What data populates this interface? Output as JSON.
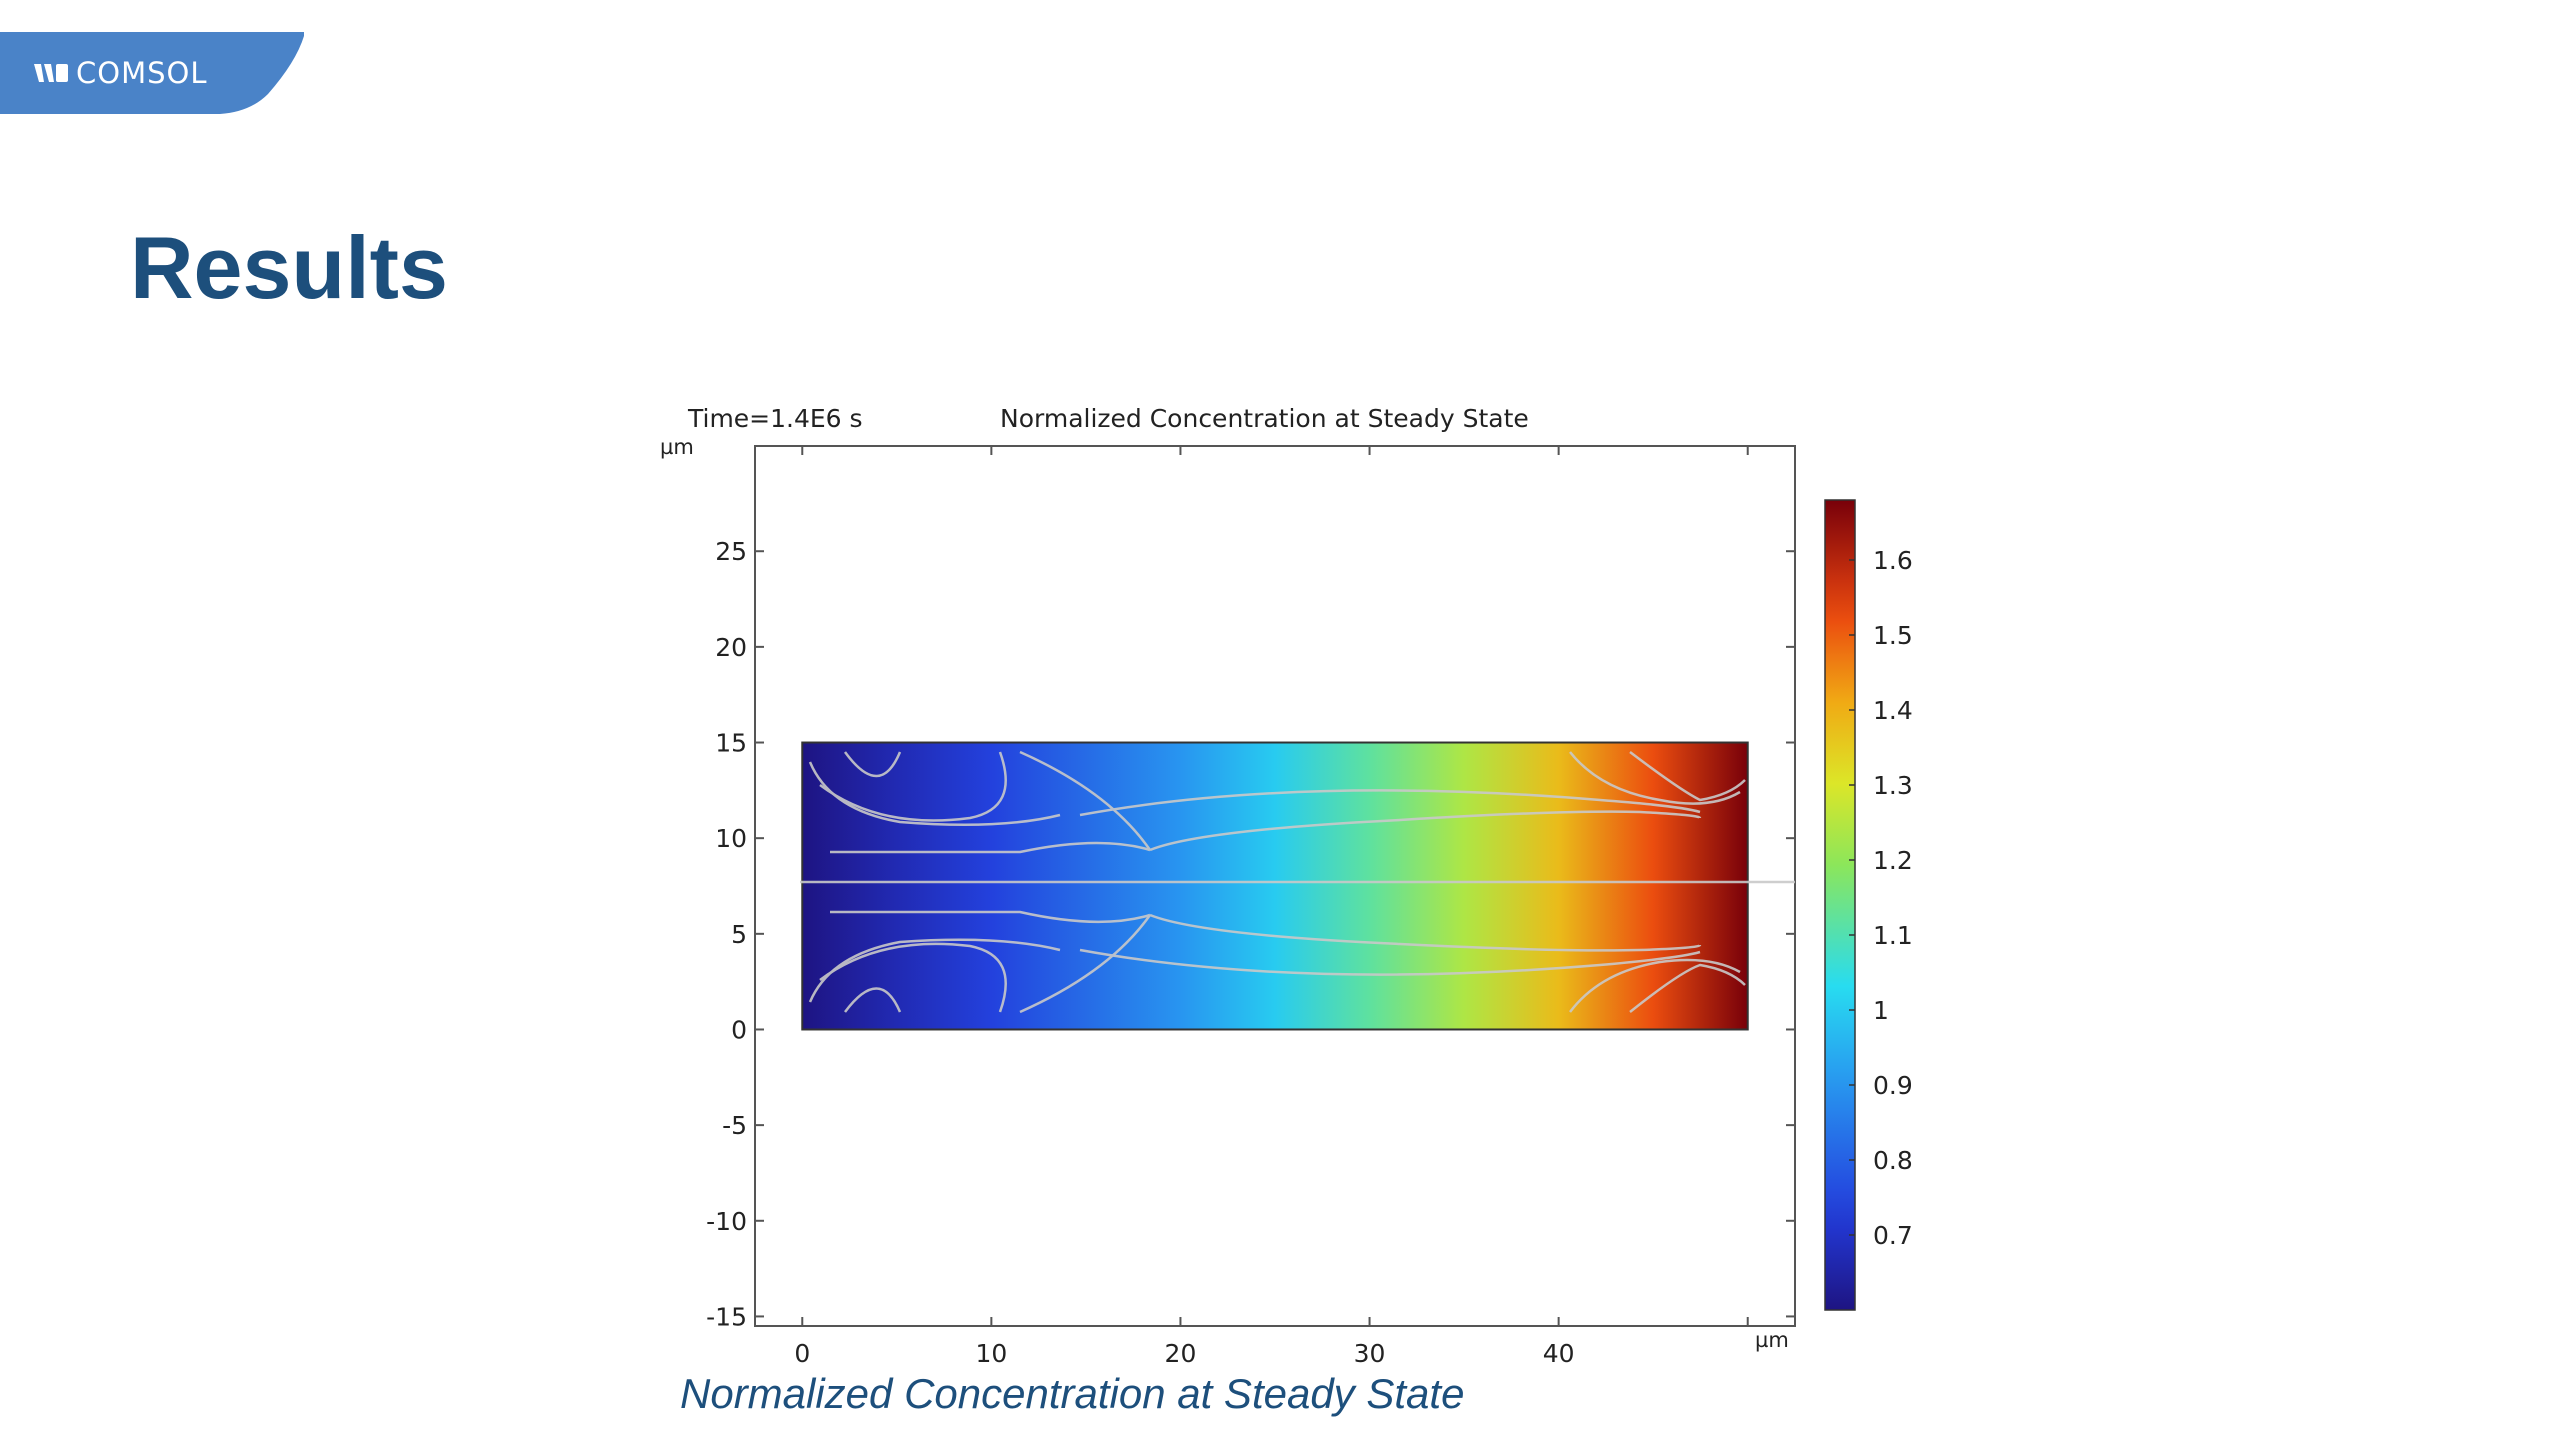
{
  "logo": {
    "brand": "COMSOL",
    "brand_color": "#4a83c8"
  },
  "slide": {
    "title": "Results",
    "title_color": "#1d4f7c"
  },
  "plot": {
    "time_label": "Time=1.4E6 s",
    "title": "Normalized Concentration at Steady State",
    "x_unit": "µm",
    "y_unit": "µm"
  },
  "caption": "Normalized Concentration at Steady State",
  "chart_data": {
    "type": "heatmap",
    "title": "Normalized Concentration at Steady State",
    "x_axis": {
      "unit": "µm",
      "range": [
        -2.5,
        52.5
      ],
      "ticks": [
        0,
        10,
        20,
        30,
        40
      ]
    },
    "y_axis": {
      "unit": "µm",
      "range": [
        -15.5,
        30.5
      ],
      "ticks": [
        25,
        20,
        15,
        10,
        5,
        0,
        -5,
        -10,
        -15
      ]
    },
    "domain": {
      "x": [
        0,
        50
      ],
      "y": [
        0,
        15
      ]
    },
    "colorbar": {
      "colormap": "rainbow",
      "range": [
        0.6,
        1.68
      ],
      "ticks": [
        1.6,
        1.5,
        1.4,
        1.3,
        1.2,
        1.1,
        1,
        0.9,
        0.8,
        0.7
      ]
    },
    "field_profile": {
      "x": [
        0,
        5,
        10,
        15,
        20,
        25,
        30,
        35,
        40,
        45,
        50
      ],
      "value": [
        0.6,
        0.67,
        0.74,
        0.82,
        0.9,
        1.0,
        1.12,
        1.24,
        1.38,
        1.52,
        1.68
      ]
    },
    "streamlines": true
  }
}
